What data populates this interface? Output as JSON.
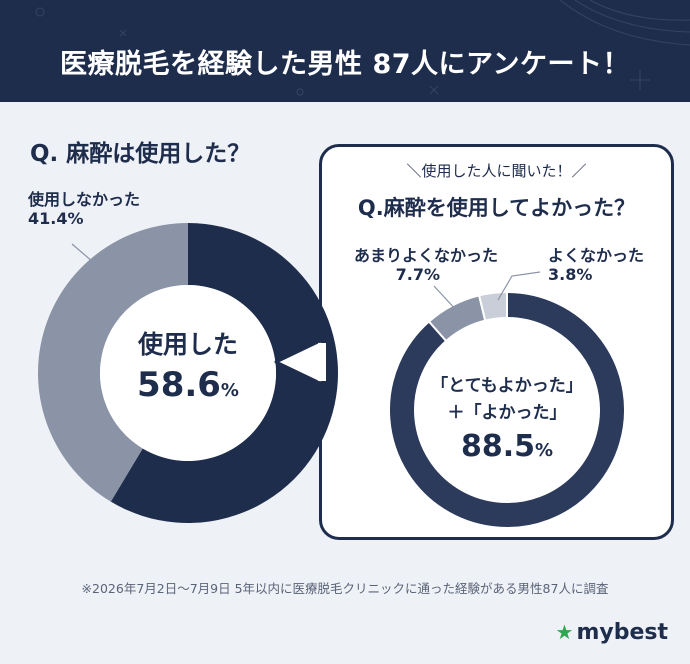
{
  "header": {
    "title": "医療脱毛を経験した男性 87人にアンケート！"
  },
  "chart_data": [
    {
      "type": "pie",
      "title": "Q. 麻酔は使用した？",
      "categories": [
        "使用した",
        "使用しなかった"
      ],
      "values": [
        58.6,
        41.4
      ],
      "unit": "%",
      "colors": [
        "#1f2d4d",
        "#8a94a6"
      ],
      "center_label": {
        "text": "使用した",
        "value": "58.6",
        "unit": "%"
      },
      "slice_labels": [
        {
          "name": "使用しなかった",
          "value": "41.4%"
        }
      ]
    },
    {
      "type": "pie",
      "subtitle": "＼使用した人に聞いた！／",
      "title": "Q.麻酔を使用してよかった？",
      "categories": [
        "「とてもよかった」+「よかった」",
        "あまりよくなかった",
        "よくなかった"
      ],
      "values": [
        88.5,
        7.7,
        3.8
      ],
      "unit": "%",
      "colors": [
        "#2c3a5c",
        "#8a94a6",
        "#c9ced8"
      ],
      "center_label": {
        "line1": "「とてもよかった」",
        "line2": "＋「よかった」",
        "value": "88.5",
        "unit": "%"
      },
      "slice_labels": [
        {
          "name": "あまりよくなかった",
          "value": "7.7%"
        },
        {
          "name": "よくなかった",
          "value": "3.8%"
        }
      ]
    }
  ],
  "footnote": "※2026年7月2日〜7月9日 5年以内に医療脱毛クリニックに通った経験がある男性87人に調査",
  "brand": {
    "name": "mybest",
    "star": "★",
    "accent": "#2fa84f"
  }
}
